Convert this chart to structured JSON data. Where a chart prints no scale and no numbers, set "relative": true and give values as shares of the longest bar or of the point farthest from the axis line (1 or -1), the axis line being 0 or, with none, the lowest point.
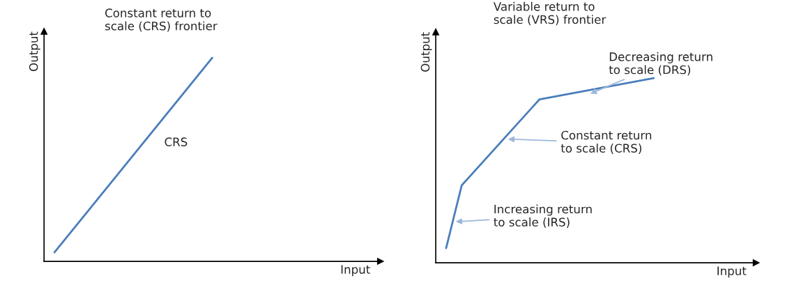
{
  "chart_data": [
    {
      "type": "line",
      "relative": true,
      "title": "Constant return to\nscale (CRS) frontier",
      "xlabel": "Input",
      "ylabel": "Output",
      "line_style": "solid",
      "categories": [
        null,
        null
      ],
      "series": [
        {
          "color": "#4a7ebb",
          "values": [
            0.044,
            1.0
          ]
        }
      ],
      "annotations": [
        "CRS"
      ]
    },
    {
      "type": "line",
      "relative": true,
      "title": "Variable return to\nscale (VRS) frontier",
      "xlabel": "Input",
      "ylabel": "Output",
      "line_style": "solid",
      "categories": [
        null,
        null,
        null,
        null,
        null,
        null,
        null,
        null,
        null,
        null,
        null,
        null,
        null,
        null,
        null,
        null,
        null,
        null,
        null,
        null,
        null,
        null,
        null,
        null,
        null,
        null,
        null,
        null,
        null,
        null,
        null,
        null,
        null,
        null,
        null,
        null,
        null,
        null,
        null,
        null,
        null,
        null,
        null
      ],
      "series": [
        {
          "color": "#4a7ebb",
          "values": [
            null,
            null,
            0.079,
            null,
            null,
            0.419,
            null,
            null,
            null,
            null,
            null,
            null,
            null,
            null,
            null,
            null,
            null,
            null,
            null,
            null,
            0.885,
            null,
            null,
            null,
            null,
            null,
            null,
            null,
            null,
            null,
            null,
            null,
            null,
            null,
            null,
            null,
            null,
            null,
            null,
            null,
            null,
            null,
            1.0
          ]
        }
      ],
      "annotations": [
        "Decreasing return\nto scale (DRS)",
        "Constant return\nto scale (CRS)",
        "Increasing return\nto scale (IRS)"
      ]
    }
  ]
}
